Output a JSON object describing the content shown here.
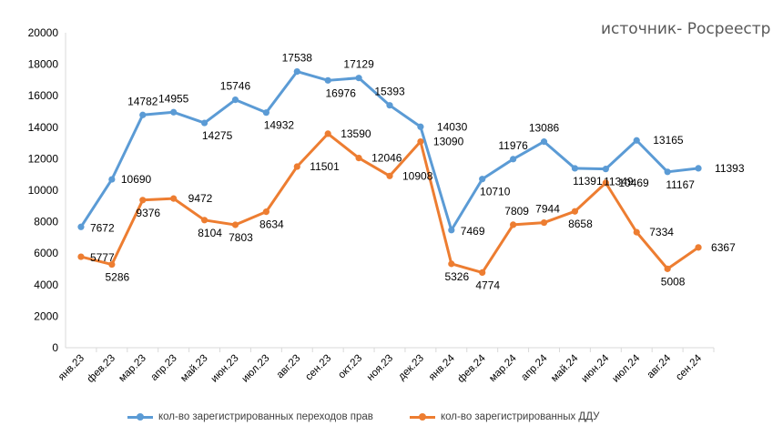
{
  "source_note": "источник- Росреестр",
  "colors": {
    "series_blue": "#5B9BD5",
    "series_orange": "#ED7D31",
    "axis": "#D9D9D9",
    "text": "#000000"
  },
  "chart_data": {
    "type": "line",
    "categories": [
      "янв.23",
      "фев.23",
      "мар.23",
      "апр.23",
      "май.23",
      "июн.23",
      "июл.23",
      "авг.23",
      "сен.23",
      "окт.23",
      "ноя.23",
      "дек.23",
      "янв.24",
      "фев.24",
      "мар.24",
      "апр.24",
      "май.24",
      "июн.24",
      "июл.24",
      "авг.24",
      "сен.24"
    ],
    "series": [
      {
        "name": "кол-во зарегистрированных переходов прав",
        "color": "#5B9BD5",
        "values": [
          7672,
          10690,
          14782,
          14955,
          14275,
          15746,
          14932,
          17538,
          16976,
          17129,
          15393,
          14030,
          7469,
          10710,
          11976,
          13086,
          11391,
          11349,
          13165,
          11167,
          11393
        ]
      },
      {
        "name": "кол-во зарегистрированных ДДУ",
        "color": "#ED7D31",
        "values": [
          5777,
          5286,
          9376,
          9472,
          8104,
          7803,
          8634,
          11501,
          13590,
          12046,
          10908,
          13090,
          5326,
          4774,
          7809,
          7944,
          8658,
          10469,
          7334,
          5008,
          6367
        ]
      }
    ],
    "ylim": [
      0,
      20000
    ],
    "yticks": [
      0,
      2000,
      4000,
      6000,
      8000,
      10000,
      12000,
      14000,
      16000,
      18000,
      20000
    ],
    "grid": false,
    "legend_position": "bottom",
    "data_labels": true
  }
}
